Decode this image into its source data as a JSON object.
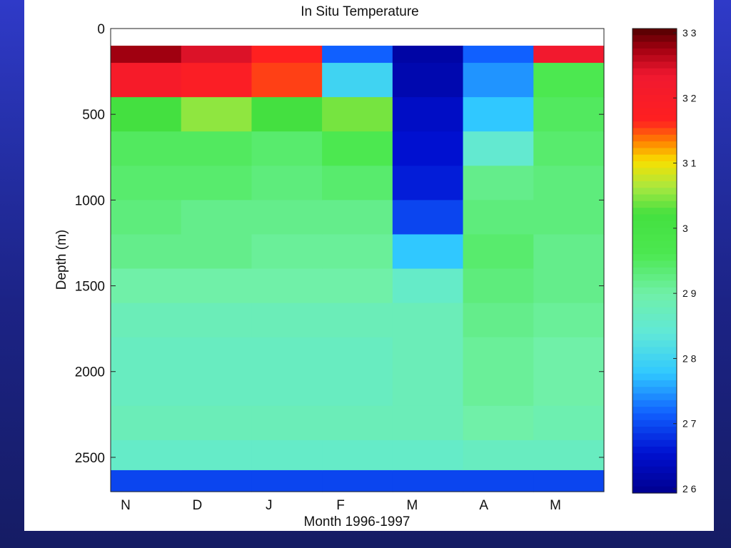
{
  "chart_data": {
    "type": "heatmap",
    "title": "In Situ Temperature",
    "xlabel": "Month 1996-1997",
    "ylabel": "Depth (m)",
    "x_tick_labels": [
      "N",
      "D",
      "J",
      "F",
      "M",
      "A",
      "M"
    ],
    "y_ticks": [
      0,
      500,
      1000,
      1500,
      2000,
      2500
    ],
    "ylim": [
      0,
      2700
    ],
    "y_reversed": true,
    "data_depth_range": [
      100,
      2700
    ],
    "colorbar": {
      "ticks": [
        3.3,
        3.2,
        3.1,
        3,
        2.9,
        2.8,
        2.7,
        2.6
      ],
      "range": [
        2.6,
        3.3
      ]
    },
    "colormap": [
      {
        "v": 2.6,
        "color": "#00008f"
      },
      {
        "v": 2.66,
        "color": "#0010d0"
      },
      {
        "v": 2.72,
        "color": "#1060ff"
      },
      {
        "v": 2.78,
        "color": "#30c8ff"
      },
      {
        "v": 2.84,
        "color": "#60e8d8"
      },
      {
        "v": 2.9,
        "color": "#70f0a8"
      },
      {
        "v": 2.96,
        "color": "#4ce850"
      },
      {
        "v": 3.02,
        "color": "#44e040"
      },
      {
        "v": 3.06,
        "color": "#a8e840"
      },
      {
        "v": 3.1,
        "color": "#f8e000"
      },
      {
        "v": 3.13,
        "color": "#ff8000"
      },
      {
        "v": 3.16,
        "color": "#ff2020"
      },
      {
        "v": 3.23,
        "color": "#f01830"
      },
      {
        "v": 3.27,
        "color": "#a00010"
      },
      {
        "v": 3.3,
        "color": "#500000"
      }
    ],
    "grid": false,
    "legend_position": "right colorbar",
    "months": [
      0,
      1,
      2,
      3,
      4,
      5,
      6
    ],
    "depths": [
      100,
      300,
      500,
      700,
      900,
      1100,
      1300,
      1500,
      1700,
      1900,
      2100,
      2300,
      2500,
      2650
    ],
    "values": [
      [
        3.27,
        3.2,
        3.02,
        2.95,
        2.94,
        2.93,
        2.92,
        2.9,
        2.88,
        2.87,
        2.87,
        2.88,
        2.86,
        2.7
      ],
      [
        3.24,
        3.18,
        3.05,
        2.95,
        2.94,
        2.92,
        2.92,
        2.9,
        2.88,
        2.87,
        2.87,
        2.88,
        2.86,
        2.7
      ],
      [
        3.16,
        3.15,
        3.02,
        2.94,
        2.93,
        2.92,
        2.91,
        2.9,
        2.88,
        2.87,
        2.87,
        2.88,
        2.86,
        2.7
      ],
      [
        2.72,
        2.8,
        3.04,
        2.96,
        2.94,
        2.92,
        2.91,
        2.9,
        2.88,
        2.87,
        2.87,
        2.88,
        2.86,
        2.7
      ],
      [
        2.62,
        2.63,
        2.65,
        2.66,
        2.67,
        2.7,
        2.78,
        2.86,
        2.88,
        2.88,
        2.88,
        2.88,
        2.86,
        2.7
      ],
      [
        2.72,
        2.75,
        2.78,
        2.85,
        2.92,
        2.93,
        2.94,
        2.93,
        2.92,
        2.91,
        2.91,
        2.9,
        2.87,
        2.7
      ],
      [
        3.22,
        2.96,
        2.95,
        2.94,
        2.93,
        2.93,
        2.92,
        2.92,
        2.91,
        2.9,
        2.9,
        2.89,
        2.87,
        2.7
      ]
    ]
  }
}
